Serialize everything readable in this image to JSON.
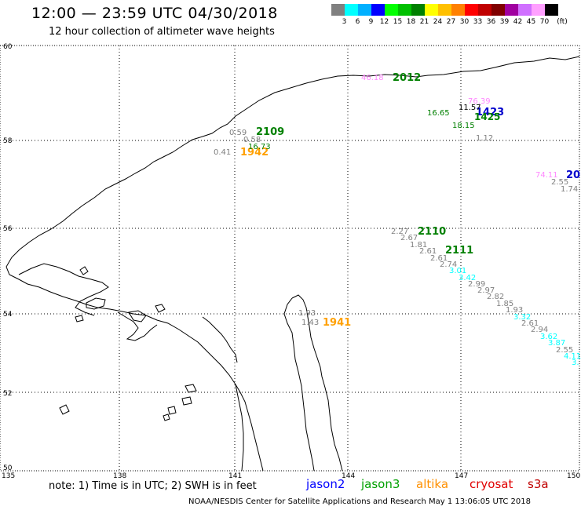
{
  "header": {
    "title": "12:00 — 23:59 UTC 04/30/2018",
    "subtitle": "12 hour collection of altimeter wave heights"
  },
  "scale": {
    "unit": "(ft)",
    "labels": [
      "3",
      "6",
      "9",
      "12",
      "15",
      "18",
      "21",
      "24",
      "27",
      "30",
      "33",
      "36",
      "39",
      "42",
      "45",
      "70"
    ],
    "colors": [
      "#808080",
      "#00ffff",
      "#00b0ff",
      "#0000ff",
      "#00ff00",
      "#00c000",
      "#008000",
      "#ffff00",
      "#ffc000",
      "#ff8000",
      "#ff0000",
      "#c00000",
      "#800000",
      "#a000a0",
      "#d070ff",
      "#ffa0ff",
      "#000000"
    ]
  },
  "axes": {
    "lat_labels": [
      "60",
      "58",
      "56",
      "54",
      "52",
      "50"
    ],
    "lon_labels": [
      "135",
      "138",
      "141",
      "144",
      "147",
      "150"
    ]
  },
  "tracks": [
    {
      "id": "2012",
      "color": "#008000",
      "texts": [
        "2012"
      ]
    },
    {
      "id": "1423",
      "color": "#008000",
      "texts": [
        "1423",
        "1425"
      ]
    },
    {
      "id": "2109",
      "color": "#008000",
      "texts": [
        "2109"
      ]
    },
    {
      "id": "1942",
      "color": "#ffa000",
      "texts": [
        "1942"
      ]
    },
    {
      "id": "2110",
      "color": "#008000",
      "texts": [
        "2110"
      ]
    },
    {
      "id": "2111",
      "color": "#008000",
      "texts": [
        "2111"
      ]
    },
    {
      "id": "1941",
      "color": "#ffa000",
      "texts": [
        "1941"
      ]
    },
    {
      "id": "20",
      "color": "#0000ff",
      "texts": [
        "20"
      ]
    }
  ],
  "values": [
    {
      "text": "46.18",
      "color": "#ff88ff"
    },
    {
      "text": "76.39",
      "color": "#ff88ff"
    },
    {
      "text": "11.57",
      "color": "#000000"
    },
    {
      "text": "16.65",
      "color": "#008000"
    },
    {
      "text": "18.15",
      "color": "#008000"
    },
    {
      "text": "1.12",
      "color": "#808080"
    },
    {
      "text": "0.59",
      "color": "#808080"
    },
    {
      "text": "0.58",
      "color": "#808080"
    },
    {
      "text": "16.73",
      "color": "#008000"
    },
    {
      "text": "0.41",
      "color": "#808080"
    },
    {
      "text": "74.11",
      "color": "#ff88ff"
    },
    {
      "text": "2.55",
      "color": "#808080"
    },
    {
      "text": "1.74",
      "color": "#808080"
    },
    {
      "text": "2.27",
      "color": "#808080"
    },
    {
      "text": "2.67",
      "color": "#808080"
    },
    {
      "text": "1.81",
      "color": "#808080"
    },
    {
      "text": "2.61",
      "color": "#808080"
    },
    {
      "text": "2.61",
      "color": "#808080"
    },
    {
      "text": "2.74",
      "color": "#808080"
    },
    {
      "text": "3.01",
      "color": "#00ffff"
    },
    {
      "text": "3.42",
      "color": "#00ffff"
    },
    {
      "text": "2.99",
      "color": "#808080"
    },
    {
      "text": "2.97",
      "color": "#808080"
    },
    {
      "text": "2.82",
      "color": "#808080"
    },
    {
      "text": "1.85",
      "color": "#808080"
    },
    {
      "text": "1.93",
      "color": "#808080"
    },
    {
      "text": "3.32",
      "color": "#00ffff"
    },
    {
      "text": "2.61",
      "color": "#808080"
    },
    {
      "text": "2.94",
      "color": "#808080"
    },
    {
      "text": "3.62",
      "color": "#00ffff"
    },
    {
      "text": "3.87",
      "color": "#00ffff"
    },
    {
      "text": "2.55",
      "color": "#808080"
    },
    {
      "text": "4.11",
      "color": "#00ffff"
    },
    {
      "text": "3.",
      "color": "#00ffff"
    },
    {
      "text": "1.93",
      "color": "#808080"
    },
    {
      "text": "1.43",
      "color": "#808080"
    }
  ],
  "footer": {
    "note": "note: 1) Time is in UTC; 2) SWH is in feet",
    "satellites": [
      {
        "name": "jason2",
        "color": "#0000ff"
      },
      {
        "name": "jason3",
        "color": "#00a000"
      },
      {
        "name": "altika",
        "color": "#ff9000"
      },
      {
        "name": "cryosat",
        "color": "#e00000"
      },
      {
        "name": "s3a",
        "color": "#c00000"
      }
    ],
    "credit": "NOAA/NESDIS Center for Satellite Applications and Research    May  1 13:06:05 UTC 2018"
  }
}
